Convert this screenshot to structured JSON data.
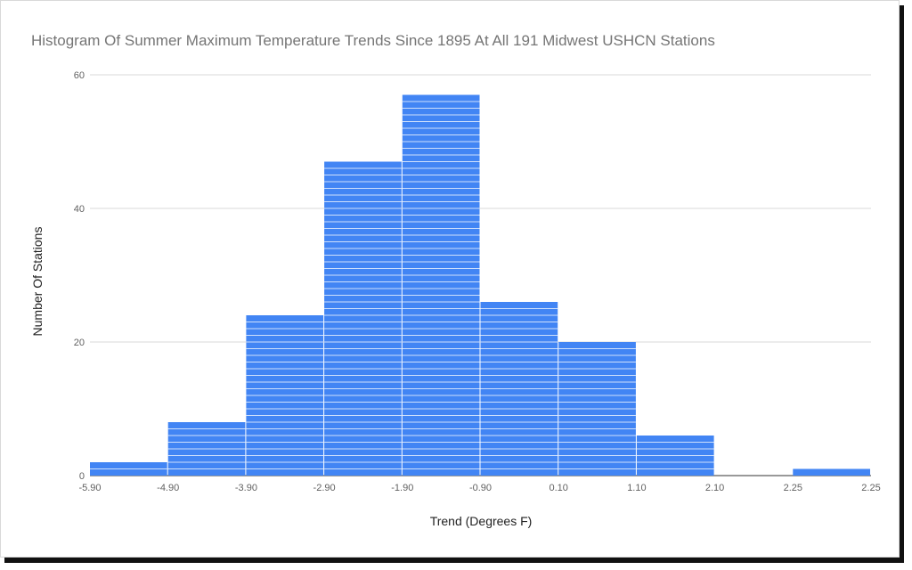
{
  "chart_data": {
    "type": "bar",
    "title": "Histogram Of Summer Maximum Temperature Trends Since 1895 At All 191 Midwest USHCN Stations",
    "xlabel": "Trend (Degrees F)",
    "ylabel": "Number Of Stations",
    "x_tick_labels": [
      "-5.90",
      "-4.90",
      "-3.90",
      "-2.90",
      "-1.90",
      "-0.90",
      "0.10",
      "1.10",
      "2.10",
      "2.25",
      "2.25"
    ],
    "bins": [
      {
        "from": "-5.90",
        "to": "-4.90",
        "count": 2
      },
      {
        "from": "-4.90",
        "to": "-3.90",
        "count": 8
      },
      {
        "from": "-3.90",
        "to": "-2.90",
        "count": 24
      },
      {
        "from": "-2.90",
        "to": "-1.90",
        "count": 47
      },
      {
        "from": "-1.90",
        "to": "-0.90",
        "count": 57
      },
      {
        "from": "-0.90",
        "to": "0.10",
        "count": 26
      },
      {
        "from": "0.10",
        "to": "1.10",
        "count": 20
      },
      {
        "from": "1.10",
        "to": "2.10",
        "count": 6
      },
      {
        "from": "2.10",
        "to": "2.25",
        "count": 0
      },
      {
        "from": "2.25",
        "to": "2.25",
        "count": 1
      }
    ],
    "y_ticks": [
      0,
      20,
      40,
      60
    ],
    "ylim": [
      0,
      60
    ],
    "grid": true,
    "legend": "none",
    "colors": {
      "bar": "#4285f4",
      "stripe": "#ffffff",
      "grid": "#d9d9d9"
    }
  }
}
